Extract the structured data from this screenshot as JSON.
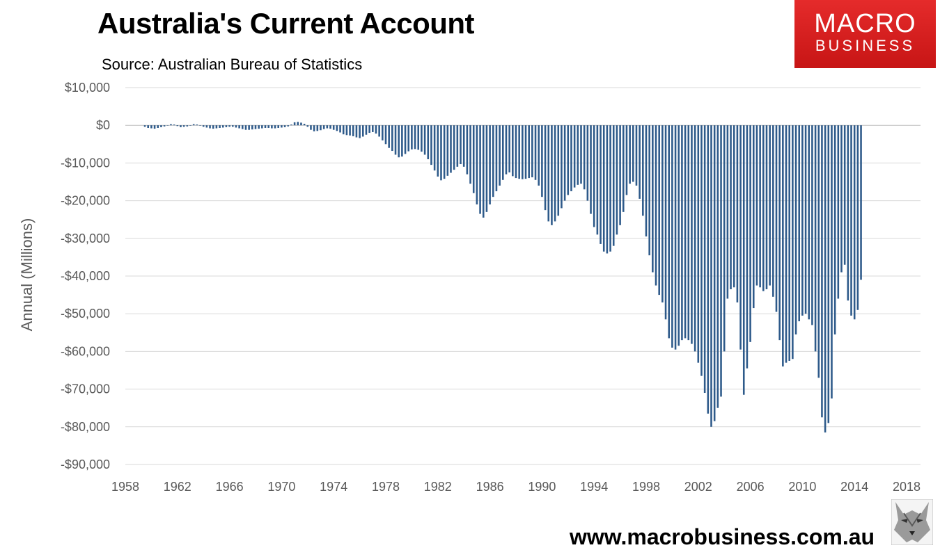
{
  "header": {
    "title": "Australia's Current Account",
    "subtitle": "Source: Australian Bureau of Statistics"
  },
  "logo": {
    "line1": "MACRO",
    "line2": "BUSINESS"
  },
  "footer": {
    "website": "www.macrobusiness.com.au"
  },
  "colors": {
    "bar": "#2e5a8a",
    "grid": "#d9d9d9",
    "axis_text": "#595959",
    "logo_red": "#d92020"
  },
  "chart_data": {
    "type": "bar",
    "title": "Australia's Current Account",
    "subtitle": "Source: Australian Bureau of Statistics",
    "xlabel": "",
    "ylabel": "Annual (Millions)",
    "ylim": [
      -90000,
      10000
    ],
    "xlim": [
      1958,
      2018
    ],
    "grid": true,
    "yticks": [
      10000,
      0,
      -10000,
      -20000,
      -30000,
      -40000,
      -50000,
      -60000,
      -70000,
      -80000,
      -90000
    ],
    "ytick_labels": [
      "$10,000",
      "$0",
      "-$10,000",
      "-$20,000",
      "-$30,000",
      "-$40,000",
      "-$50,000",
      "-$60,000",
      "-$70,000",
      "-$80,000",
      "-$90,000"
    ],
    "xticks": [
      1958,
      1962,
      1966,
      1970,
      1974,
      1978,
      1982,
      1986,
      1990,
      1994,
      1998,
      2002,
      2006,
      2010,
      2014,
      2018
    ],
    "xtick_labels": [
      "1958",
      "1962",
      "1966",
      "1970",
      "1974",
      "1978",
      "1982",
      "1986",
      "1990",
      "1994",
      "1998",
      "2002",
      "2006",
      "2010",
      "2014",
      "2018"
    ],
    "series": [
      {
        "name": "",
        "x_start": 1959.5,
        "step": 0.25,
        "values": [
          -400,
          -700,
          -800,
          -900,
          -700,
          -500,
          -300,
          0,
          300,
          200,
          -200,
          -500,
          -400,
          -300,
          -100,
          300,
          200,
          -100,
          -400,
          -600,
          -800,
          -900,
          -800,
          -700,
          -600,
          -500,
          -400,
          -400,
          -600,
          -800,
          -1000,
          -1200,
          -1200,
          -1100,
          -1000,
          -900,
          -800,
          -700,
          -700,
          -800,
          -800,
          -700,
          -600,
          -500,
          -300,
          200,
          800,
          900,
          700,
          400,
          -400,
          -1200,
          -1600,
          -1500,
          -1300,
          -1000,
          -800,
          -900,
          -1200,
          -1500,
          -1900,
          -2400,
          -2600,
          -2700,
          -2900,
          -3200,
          -3400,
          -3000,
          -2500,
          -2000,
          -1800,
          -2200,
          -3000,
          -4000,
          -5000,
          -6000,
          -6800,
          -7800,
          -8500,
          -8300,
          -7600,
          -6900,
          -6400,
          -6300,
          -6500,
          -7000,
          -7800,
          -9000,
          -10500,
          -12000,
          -13600,
          -14600,
          -14200,
          -13400,
          -12600,
          -11800,
          -11000,
          -10300,
          -11000,
          -13000,
          -15500,
          -18000,
          -21000,
          -23500,
          -24500,
          -23000,
          -21000,
          -19000,
          -17500,
          -16000,
          -14500,
          -13000,
          -12500,
          -13500,
          -14000,
          -14200,
          -14300,
          -14200,
          -14000,
          -13800,
          -14500,
          -16000,
          -19000,
          -22500,
          -25500,
          -26500,
          -25500,
          -24000,
          -22000,
          -20000,
          -18500,
          -17500,
          -16500,
          -15800,
          -15500,
          -17000,
          -20000,
          -23500,
          -27000,
          -29000,
          -31500,
          -33500,
          -34000,
          -33500,
          -32000,
          -29000,
          -26500,
          -23000,
          -18500,
          -15500,
          -15000,
          -16000,
          -19500,
          -24000,
          -29500,
          -34500,
          -39000,
          -42500,
          -45000,
          -47000,
          -51500,
          -56500,
          -59000,
          -59500,
          -58500,
          -57000,
          -56500,
          -57000,
          -58000,
          -60000,
          -63000,
          -66500,
          -71000,
          -76500,
          -80000,
          -78500,
          -75000,
          -72000,
          -60000,
          -46000,
          -43500,
          -43000,
          -47000,
          -59500,
          -71500,
          -64500,
          -57500,
          -48500,
          -42500,
          -43000,
          -44000,
          -43500,
          -42500,
          -45500,
          -49500,
          -57000,
          -64000,
          -63000,
          -62500,
          -62000,
          -55500,
          -52000,
          -50500,
          -50000,
          -51500,
          -53000,
          -60000,
          -67000,
          -77500,
          -81500,
          -79000,
          -72500,
          -55500,
          -46000,
          -39000,
          -37000,
          -46500,
          -50500,
          -51500,
          -49000,
          -41000
        ]
      }
    ]
  }
}
